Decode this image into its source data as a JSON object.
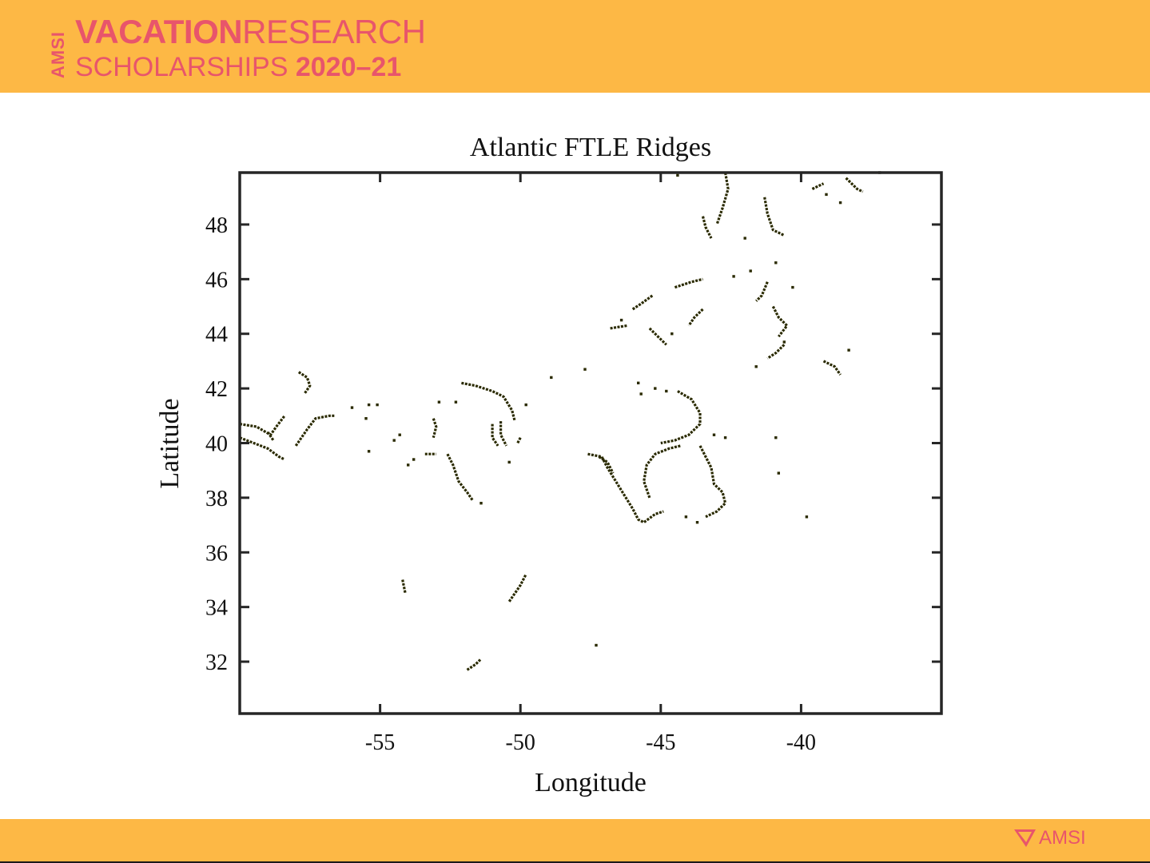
{
  "brand": {
    "line1_bold": "VACATION",
    "line1_light": "RESEARCH",
    "line2_light": "SCHOLARSHIPS",
    "line2_bold": "2020–21",
    "vertical": "AMSI",
    "footer_logo": "AMSI",
    "color": "#E8556B",
    "band_color": "#FDB845"
  },
  "chart_data": {
    "type": "scatter",
    "title": "Atlantic FTLE Ridges",
    "xlabel": "Longitude",
    "ylabel": "Latitude",
    "xlim": [
      -60,
      -35
    ],
    "ylim": [
      30.1,
      49.9
    ],
    "xticks": [
      -55,
      -50,
      -45,
      -40
    ],
    "yticks": [
      32,
      34,
      36,
      38,
      40,
      42,
      44,
      46,
      48
    ],
    "grid": false,
    "marker_color": "#2a2a00",
    "series": [
      {
        "segments": [
          [
            [
              -60.0,
              40.7
            ],
            [
              -59.4,
              40.6
            ],
            [
              -58.9,
              40.3
            ],
            [
              -58.7,
              40.6
            ],
            [
              -58.4,
              41.0
            ]
          ],
          [
            [
              -60.0,
              40.2
            ],
            [
              -59.5,
              40.0
            ],
            [
              -59.0,
              39.8
            ],
            [
              -58.6,
              39.5
            ],
            [
              -58.4,
              39.4
            ]
          ],
          [
            [
              -58.0,
              39.9
            ],
            [
              -57.6,
              40.5
            ],
            [
              -57.3,
              40.9
            ],
            [
              -56.8,
              41.0
            ],
            [
              -56.6,
              41.0
            ]
          ],
          [
            [
              -57.9,
              42.6
            ],
            [
              -57.6,
              42.4
            ],
            [
              -57.5,
              42.1
            ],
            [
              -57.7,
              41.8
            ]
          ],
          [
            [
              -52.1,
              42.2
            ],
            [
              -51.6,
              42.1
            ],
            [
              -51.0,
              41.9
            ],
            [
              -50.6,
              41.7
            ],
            [
              -50.3,
              41.2
            ],
            [
              -50.2,
              40.8
            ]
          ],
          [
            [
              -53.1,
              40.9
            ],
            [
              -53.0,
              40.6
            ],
            [
              -53.1,
              40.2
            ]
          ],
          [
            [
              -52.6,
              39.6
            ],
            [
              -52.4,
              39.2
            ],
            [
              -52.2,
              38.6
            ],
            [
              -51.9,
              38.2
            ],
            [
              -51.7,
              37.9
            ]
          ],
          [
            [
              -51.0,
              40.7
            ],
            [
              -51.0,
              40.2
            ],
            [
              -50.8,
              39.9
            ]
          ],
          [
            [
              -50.7,
              40.8
            ],
            [
              -50.7,
              40.3
            ],
            [
              -50.5,
              39.9
            ]
          ],
          [
            [
              -50.0,
              40.2
            ],
            [
              -50.1,
              40.0
            ]
          ],
          [
            [
              -47.6,
              39.6
            ],
            [
              -47.1,
              39.5
            ],
            [
              -46.9,
              39.1
            ],
            [
              -46.6,
              38.6
            ],
            [
              -46.3,
              38.1
            ],
            [
              -46.0,
              37.6
            ],
            [
              -45.8,
              37.2
            ],
            [
              -45.6,
              37.1
            ],
            [
              -45.2,
              37.4
            ],
            [
              -44.9,
              37.5
            ]
          ],
          [
            [
              -47.2,
              39.5
            ],
            [
              -46.9,
              39.3
            ],
            [
              -46.7,
              38.9
            ]
          ],
          [
            [
              -45.4,
              38.0
            ],
            [
              -45.6,
              38.6
            ],
            [
              -45.5,
              39.2
            ],
            [
              -45.2,
              39.6
            ],
            [
              -44.7,
              39.8
            ],
            [
              -44.3,
              39.9
            ]
          ],
          [
            [
              -43.6,
              39.9
            ],
            [
              -43.4,
              39.5
            ],
            [
              -43.2,
              39.1
            ],
            [
              -43.1,
              38.5
            ],
            [
              -42.8,
              38.2
            ],
            [
              -42.7,
              37.8
            ],
            [
              -43.0,
              37.5
            ],
            [
              -43.4,
              37.3
            ]
          ],
          [
            [
              -44.4,
              41.9
            ],
            [
              -43.9,
              41.6
            ],
            [
              -43.6,
              41.1
            ],
            [
              -43.6,
              40.7
            ],
            [
              -44.0,
              40.3
            ],
            [
              -44.5,
              40.1
            ],
            [
              -45.0,
              40.0
            ]
          ],
          [
            [
              -50.4,
              34.2
            ],
            [
              -50.2,
              34.5
            ],
            [
              -50.0,
              34.8
            ],
            [
              -49.8,
              35.2
            ]
          ],
          [
            [
              -42.7,
              49.9
            ],
            [
              -42.6,
              49.3
            ],
            [
              -42.8,
              48.6
            ],
            [
              -43.0,
              48.0
            ]
          ],
          [
            [
              -43.5,
              48.3
            ],
            [
              -43.4,
              47.9
            ],
            [
              -43.2,
              47.5
            ]
          ],
          [
            [
              -41.3,
              49.0
            ],
            [
              -41.2,
              48.4
            ],
            [
              -41.0,
              47.8
            ],
            [
              -40.6,
              47.6
            ]
          ],
          [
            [
              -45.3,
              45.4
            ],
            [
              -45.7,
              45.1
            ],
            [
              -46.0,
              44.9
            ]
          ],
          [
            [
              -43.5,
              44.9
            ],
            [
              -43.8,
              44.6
            ],
            [
              -44.0,
              44.3
            ]
          ],
          [
            [
              -41.2,
              45.9
            ],
            [
              -41.4,
              45.4
            ],
            [
              -41.6,
              45.2
            ]
          ],
          [
            [
              -41.0,
              45.0
            ],
            [
              -40.8,
              44.6
            ],
            [
              -40.5,
              44.3
            ],
            [
              -40.8,
              43.9
            ]
          ],
          [
            [
              -40.6,
              43.6
            ],
            [
              -40.9,
              43.3
            ],
            [
              -41.2,
              43.1
            ]
          ],
          [
            [
              -39.2,
              43.0
            ],
            [
              -38.8,
              42.8
            ],
            [
              -38.6,
              42.5
            ]
          ],
          [
            [
              -38.4,
              49.7
            ],
            [
              -38.0,
              49.3
            ],
            [
              -37.8,
              49.2
            ]
          ],
          [
            [
              -44.5,
              45.7
            ],
            [
              -43.9,
              45.9
            ],
            [
              -43.5,
              46.0
            ]
          ],
          [
            [
              -46.8,
              44.2
            ],
            [
              -46.2,
              44.3
            ]
          ],
          [
            [
              -45.4,
              44.2
            ],
            [
              -45.0,
              43.8
            ],
            [
              -44.8,
              43.6
            ]
          ],
          [
            [
              -59.0,
              40.4
            ],
            [
              -58.8,
              40.1
            ]
          ],
          [
            [
              -51.9,
              31.7
            ],
            [
              -51.6,
              31.9
            ],
            [
              -51.4,
              32.1
            ]
          ],
          [
            [
              -54.2,
              35.0
            ],
            [
              -54.1,
              34.5
            ]
          ],
          [
            [
              -53.4,
              39.6
            ],
            [
              -53.0,
              39.6
            ]
          ],
          [
            [
              -39.6,
              49.3
            ],
            [
              -39.2,
              49.5
            ]
          ]
        ],
        "points": [
          [
            -56.0,
            41.3
          ],
          [
            -55.5,
            40.9
          ],
          [
            -55.1,
            41.4
          ],
          [
            -55.4,
            41.4
          ],
          [
            -54.5,
            40.1
          ],
          [
            -54.3,
            40.3
          ],
          [
            -54.0,
            39.2
          ],
          [
            -53.8,
            39.4
          ],
          [
            -55.4,
            39.7
          ],
          [
            -52.9,
            41.5
          ],
          [
            -52.3,
            41.5
          ],
          [
            -51.4,
            37.8
          ],
          [
            -50.4,
            39.3
          ],
          [
            -49.8,
            41.4
          ],
          [
            -48.9,
            42.4
          ],
          [
            -47.7,
            42.7
          ],
          [
            -46.4,
            44.5
          ],
          [
            -47.3,
            32.6
          ],
          [
            -45.2,
            42.0
          ],
          [
            -45.7,
            41.8
          ],
          [
            -45.8,
            42.2
          ],
          [
            -44.8,
            41.9
          ],
          [
            -43.1,
            40.3
          ],
          [
            -42.7,
            40.2
          ],
          [
            -44.6,
            44.0
          ],
          [
            -42.4,
            46.1
          ],
          [
            -42.0,
            47.5
          ],
          [
            -41.8,
            46.3
          ],
          [
            -41.6,
            42.8
          ],
          [
            -40.9,
            46.6
          ],
          [
            -40.3,
            45.7
          ],
          [
            -40.6,
            43.7
          ],
          [
            -40.9,
            40.2
          ],
          [
            -40.8,
            38.9
          ],
          [
            -39.8,
            37.3
          ],
          [
            -38.3,
            43.4
          ],
          [
            -38.6,
            48.8
          ],
          [
            -43.7,
            37.1
          ],
          [
            -44.1,
            37.3
          ],
          [
            -44.4,
            49.8
          ],
          [
            -39.1,
            49.1
          ],
          [
            -37.2,
            49.9
          ]
        ]
      }
    ]
  }
}
